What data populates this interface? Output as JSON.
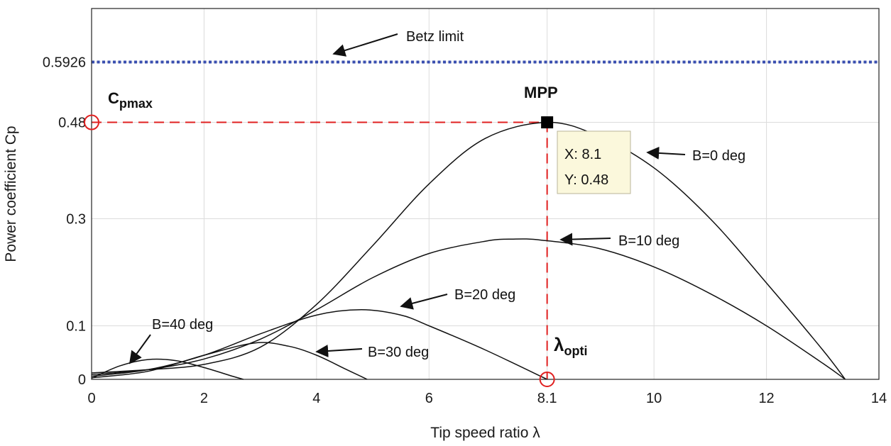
{
  "chart_data": {
    "type": "line",
    "xlabel": "Tip speed ratio  λ",
    "ylabel": "Power coefficient  Cp",
    "xlim": [
      0,
      14
    ],
    "ylim": [
      0,
      0.6926
    ],
    "x_ticks": [
      0,
      2,
      4,
      6,
      8.1,
      10,
      12,
      14
    ],
    "x_tick_labels": [
      "0",
      "2",
      "4",
      "6",
      "8.1",
      "10",
      "12",
      "14"
    ],
    "y_ticks": [
      0,
      0.1,
      0.3,
      0.48,
      0.5926
    ],
    "y_tick_labels": [
      "0",
      "0.1",
      "0.3",
      "0.48",
      "0.5926"
    ],
    "grid": true,
    "betz_limit": {
      "value": 0.5926,
      "label": "Betz limit",
      "color": "#3a4fb0"
    },
    "mpp": {
      "x": 8.1,
      "y": 0.48,
      "label": "MPP",
      "tip_x": "X: 8.1",
      "tip_y": "Y: 0.48"
    },
    "cpmax_label": {
      "main": "C",
      "sub": "pmax"
    },
    "lambda_opti_label": {
      "main": "λ",
      "sub": "opti"
    },
    "marker_color": "#e02020",
    "series": [
      {
        "name": "B=0 deg",
        "label": "B=0 deg",
        "x": [
          0,
          1,
          2,
          3,
          4,
          5,
          6,
          7,
          8.1,
          9,
          10,
          11,
          12,
          13,
          13.4
        ],
        "y": [
          0.012,
          0.018,
          0.028,
          0.06,
          0.14,
          0.25,
          0.365,
          0.45,
          0.48,
          0.455,
          0.395,
          0.3,
          0.18,
          0.055,
          0
        ]
      },
      {
        "name": "B=10 deg",
        "label": "B=10 deg",
        "x": [
          0,
          1,
          2,
          3,
          4,
          5,
          6,
          7,
          7.5,
          8,
          9,
          10,
          11,
          12,
          13,
          13.4
        ],
        "y": [
          0.009,
          0.018,
          0.038,
          0.075,
          0.13,
          0.19,
          0.235,
          0.258,
          0.262,
          0.26,
          0.245,
          0.21,
          0.16,
          0.1,
          0.03,
          0
        ]
      },
      {
        "name": "B=20 deg",
        "label": "B=20 deg",
        "x": [
          0,
          1,
          2,
          3,
          4,
          4.8,
          5.5,
          6,
          7,
          8.1
        ],
        "y": [
          0.006,
          0.018,
          0.045,
          0.085,
          0.12,
          0.13,
          0.12,
          0.1,
          0.055,
          0
        ]
      },
      {
        "name": "B=30 deg",
        "label": "B=30 deg",
        "x": [
          0,
          1,
          2,
          2.9,
          3.5,
          4,
          4.5,
          4.9
        ],
        "y": [
          0.003,
          0.015,
          0.045,
          0.068,
          0.062,
          0.045,
          0.02,
          0
        ]
      },
      {
        "name": "B=40 deg",
        "label": "B=40 deg",
        "x": [
          0,
          0.5,
          1,
          1.5,
          2,
          2.5,
          2.7
        ],
        "y": [
          0.002,
          0.025,
          0.037,
          0.035,
          0.022,
          0.006,
          0
        ]
      }
    ]
  }
}
